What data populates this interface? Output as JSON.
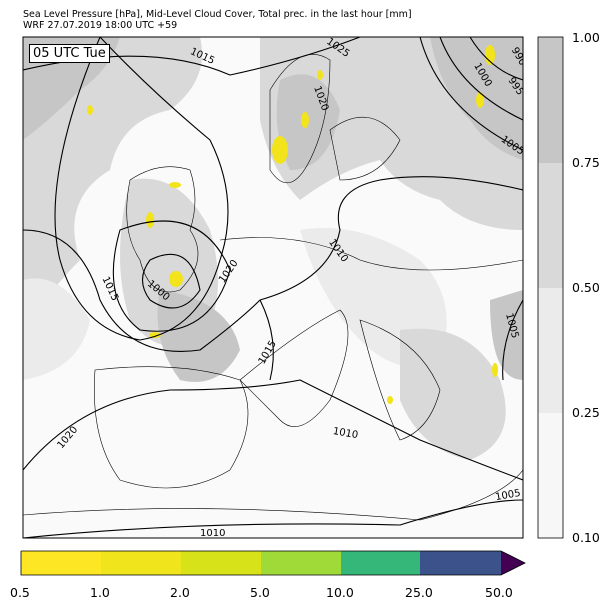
{
  "header": {
    "title_line1": "Sea Level Pressure [hPa], Mid-Level Cloud Cover, Total prec. in the last hour [mm]",
    "title_line2": "WRF 27.07.2019 18:00 UTC +59"
  },
  "map": {
    "valid_time_label": "05 UTC Tue",
    "isobar_labels": [
      "1015",
      "1025",
      "1020",
      "1000",
      "995",
      "990",
      "1005",
      "1010",
      "1020",
      "1015",
      "1000",
      "1015",
      "1005",
      "1010",
      "1020",
      "1005",
      "1010"
    ],
    "low_center_color": "#f2e31b"
  },
  "cloud_colorbar": {
    "ticks": [
      "0.10",
      "0.25",
      "0.50",
      "0.75",
      "1.00"
    ],
    "colors": [
      "#f7f7f7",
      "#ebebeb",
      "#d9d9d9",
      "#c6c6c6"
    ]
  },
  "precip_colorbar": {
    "ticks": [
      "0.5",
      "1.0",
      "2.0",
      "5.0",
      "10.0",
      "25.0",
      "50.0"
    ],
    "colors": [
      "#fde725",
      "#f0e51d",
      "#d8e219",
      "#a0da39",
      "#35b779",
      "#3b528b",
      "#440154"
    ],
    "extend": "max"
  }
}
